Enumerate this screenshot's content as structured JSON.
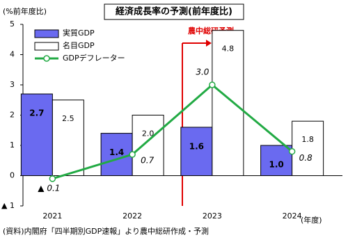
{
  "chart_data": {
    "type": "bar",
    "title": "経済成長率の予測(前年度比)",
    "y_label": "(%前年度比)",
    "x_label": "(年度)",
    "source": "(資料)内閣府「四半期別GDP速報」より農中総研作成・予測",
    "annotation": "農中総研予測",
    "categories": [
      "2021",
      "2022",
      "2023",
      "2024"
    ],
    "series": [
      {
        "name": "実質GDP",
        "type": "bar",
        "color": "#6a6af0",
        "values": [
          2.7,
          1.4,
          1.6,
          1.0
        ],
        "value_labels": [
          "2.7",
          "1.4",
          "1.6",
          "1.0"
        ]
      },
      {
        "name": "名目GDP",
        "type": "bar",
        "color": "#ffffff",
        "values": [
          2.5,
          2.0,
          4.8,
          1.8
        ],
        "value_labels": [
          "2.5",
          "2.0",
          "4.8",
          "1.8"
        ]
      },
      {
        "name": "GDPデフレーター",
        "type": "line",
        "color": "#22aa44",
        "values": [
          -0.1,
          0.7,
          3.0,
          0.8
        ],
        "value_labels": [
          "▲ 0.1",
          "0.7",
          "3.0",
          "0.8"
        ]
      }
    ],
    "ylim": [
      -1,
      5
    ],
    "yticks": [
      {
        "value": -1,
        "label": "▲ 1"
      },
      0,
      1,
      2,
      3,
      4,
      5
    ],
    "grid": false
  }
}
